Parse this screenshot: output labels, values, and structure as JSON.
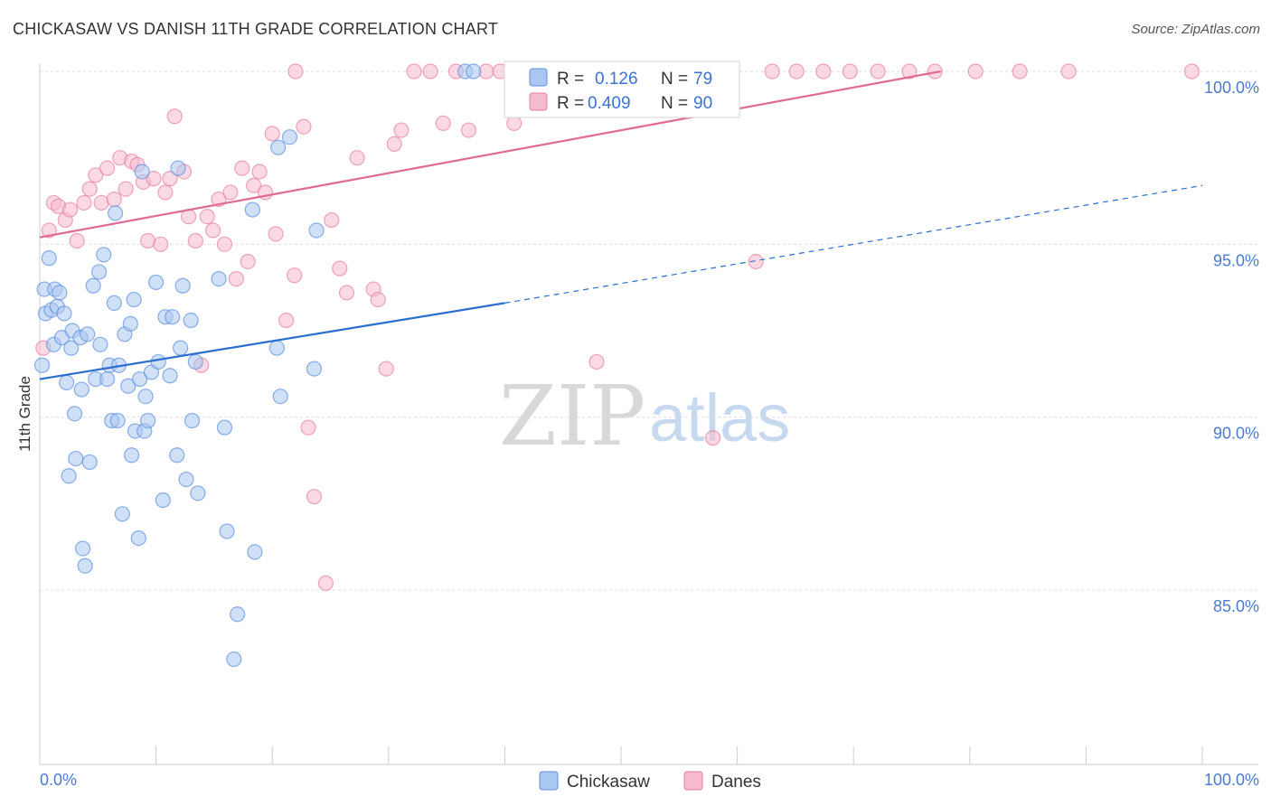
{
  "header": {
    "title": "CHICKASAW VS DANISH 11TH GRADE CORRELATION CHART",
    "source": "Source: ZipAtlas.com"
  },
  "colors": {
    "chickasaw": "#5b8fe0",
    "chickasaw_fill": "#a9c7f1",
    "danes": "#e77fa2",
    "danes_fill": "#f6bacd",
    "trend_blue": "#2a6fd0",
    "trend_pink": "#e06a94",
    "axis_label": "#4a7bd0",
    "grid": "#dddddd"
  },
  "legend_top": {
    "rows": [
      {
        "r_label": "R = ",
        "r_value": "0.126",
        "n_label": "N = ",
        "n_value": "79",
        "series": "chickasaw"
      },
      {
        "r_label": "R = ",
        "r_value": "0.409",
        "n_label": "N = ",
        "n_value": "90",
        "series": "danes"
      }
    ]
  },
  "legend_bottom": {
    "items": [
      {
        "label": "Chickasaw",
        "series": "chickasaw"
      },
      {
        "label": "Danes",
        "series": "danes"
      }
    ]
  },
  "watermark": {
    "zip": "ZIP",
    "atlas": "atlas"
  },
  "chart_data": {
    "type": "scatter",
    "title": "CHICKASAW VS DANISH 11TH GRADE CORRELATION CHART",
    "ylabel": "11th Grade",
    "xlabel": "",
    "x_tick_labels": [
      "0.0%",
      "100.0%"
    ],
    "y_tick_labels": [
      "100.0%",
      "95.0%",
      "90.0%",
      "85.0%"
    ],
    "y_ticks": [
      100,
      95,
      90,
      85
    ],
    "xlim": [
      0,
      100
    ],
    "ylim": [
      80.2,
      100.5
    ],
    "grid": true,
    "legend_placement": "top-center",
    "series": [
      {
        "name": "Chickasaw",
        "r": 0.126,
        "n": 79,
        "trend": {
          "x0": 0,
          "y0": 91.1,
          "x1": 40,
          "y1": 93.3,
          "dashed_to_x": 100,
          "dashed_to_y": 96.7
        },
        "points": [
          [
            0.2,
            91.5
          ],
          [
            0.4,
            93.7
          ],
          [
            0.5,
            93.0
          ],
          [
            0.8,
            94.6
          ],
          [
            1.0,
            93.1
          ],
          [
            1.2,
            92.1
          ],
          [
            1.3,
            93.7
          ],
          [
            1.5,
            93.2
          ],
          [
            1.7,
            93.6
          ],
          [
            1.9,
            92.3
          ],
          [
            2.1,
            93.0
          ],
          [
            2.3,
            91.0
          ],
          [
            2.5,
            88.3
          ],
          [
            2.7,
            92.0
          ],
          [
            2.8,
            92.5
          ],
          [
            3.0,
            90.1
          ],
          [
            3.1,
            88.8
          ],
          [
            3.5,
            92.3
          ],
          [
            3.6,
            90.8
          ],
          [
            3.7,
            86.2
          ],
          [
            3.9,
            85.7
          ],
          [
            4.1,
            92.4
          ],
          [
            4.3,
            88.7
          ],
          [
            4.6,
            93.8
          ],
          [
            4.8,
            91.1
          ],
          [
            5.1,
            94.2
          ],
          [
            5.2,
            92.1
          ],
          [
            5.5,
            94.7
          ],
          [
            5.8,
            91.1
          ],
          [
            6.0,
            91.5
          ],
          [
            6.2,
            89.9
          ],
          [
            6.4,
            93.3
          ],
          [
            6.5,
            95.9
          ],
          [
            6.7,
            89.9
          ],
          [
            6.8,
            91.5
          ],
          [
            7.1,
            87.2
          ],
          [
            7.3,
            92.4
          ],
          [
            7.6,
            90.9
          ],
          [
            7.8,
            92.7
          ],
          [
            7.9,
            88.9
          ],
          [
            8.1,
            93.4
          ],
          [
            8.2,
            89.6
          ],
          [
            8.5,
            86.5
          ],
          [
            8.6,
            91.1
          ],
          [
            8.8,
            97.1
          ],
          [
            9.0,
            89.6
          ],
          [
            9.1,
            90.6
          ],
          [
            9.3,
            89.9
          ],
          [
            9.6,
            91.3
          ],
          [
            10.0,
            93.9
          ],
          [
            10.2,
            91.6
          ],
          [
            10.6,
            87.6
          ],
          [
            10.8,
            92.9
          ],
          [
            11.2,
            91.2
          ],
          [
            11.4,
            92.9
          ],
          [
            11.8,
            88.9
          ],
          [
            11.9,
            97.2
          ],
          [
            12.1,
            92.0
          ],
          [
            12.3,
            93.8
          ],
          [
            12.6,
            88.2
          ],
          [
            13.0,
            92.8
          ],
          [
            13.1,
            89.9
          ],
          [
            13.4,
            91.6
          ],
          [
            13.6,
            87.8
          ],
          [
            15.4,
            94.0
          ],
          [
            15.9,
            89.7
          ],
          [
            16.1,
            86.7
          ],
          [
            16.7,
            83.0
          ],
          [
            17.0,
            84.3
          ],
          [
            18.3,
            96.0
          ],
          [
            18.5,
            86.1
          ],
          [
            20.4,
            92.0
          ],
          [
            20.7,
            90.6
          ],
          [
            20.5,
            97.8
          ],
          [
            21.5,
            98.1
          ],
          [
            23.6,
            91.4
          ],
          [
            23.8,
            95.4
          ],
          [
            36.6,
            100.0
          ],
          [
            37.3,
            100.0
          ]
        ]
      },
      {
        "name": "Danes",
        "r": 0.409,
        "n": 90,
        "trend": {
          "x0": 0,
          "y0": 95.2,
          "x1": 77.5,
          "y1": 100.0
        },
        "points": [
          [
            0.3,
            92.0
          ],
          [
            0.8,
            95.4
          ],
          [
            1.2,
            96.2
          ],
          [
            1.6,
            96.1
          ],
          [
            2.2,
            95.7
          ],
          [
            2.6,
            96.0
          ],
          [
            3.2,
            95.1
          ],
          [
            3.8,
            96.2
          ],
          [
            4.3,
            96.6
          ],
          [
            4.8,
            97.0
          ],
          [
            5.3,
            96.2
          ],
          [
            5.8,
            97.2
          ],
          [
            6.4,
            96.3
          ],
          [
            6.9,
            97.5
          ],
          [
            7.4,
            96.6
          ],
          [
            7.9,
            97.4
          ],
          [
            8.4,
            97.3
          ],
          [
            8.9,
            96.8
          ],
          [
            9.3,
            95.1
          ],
          [
            9.8,
            96.9
          ],
          [
            10.4,
            95.0
          ],
          [
            10.8,
            96.5
          ],
          [
            11.2,
            96.9
          ],
          [
            11.6,
            98.7
          ],
          [
            12.4,
            97.1
          ],
          [
            12.8,
            95.8
          ],
          [
            13.4,
            95.1
          ],
          [
            13.9,
            91.5
          ],
          [
            14.4,
            95.8
          ],
          [
            14.9,
            95.4
          ],
          [
            15.4,
            96.3
          ],
          [
            15.9,
            95.0
          ],
          [
            16.4,
            96.5
          ],
          [
            16.9,
            94.0
          ],
          [
            17.4,
            97.2
          ],
          [
            17.9,
            94.5
          ],
          [
            18.4,
            96.7
          ],
          [
            18.9,
            97.1
          ],
          [
            19.4,
            96.5
          ],
          [
            20.0,
            98.2
          ],
          [
            20.3,
            95.3
          ],
          [
            21.2,
            92.8
          ],
          [
            21.9,
            94.1
          ],
          [
            22.7,
            98.4
          ],
          [
            23.1,
            89.7
          ],
          [
            23.6,
            87.7
          ],
          [
            24.6,
            85.2
          ],
          [
            25.1,
            95.7
          ],
          [
            25.8,
            94.3
          ],
          [
            26.4,
            93.6
          ],
          [
            27.3,
            97.5
          ],
          [
            28.7,
            93.7
          ],
          [
            29.1,
            93.4
          ],
          [
            29.8,
            91.4
          ],
          [
            30.5,
            97.9
          ],
          [
            31.1,
            98.3
          ],
          [
            32.2,
            100.0
          ],
          [
            33.6,
            100.0
          ],
          [
            34.7,
            98.5
          ],
          [
            35.8,
            100.0
          ],
          [
            36.9,
            98.3
          ],
          [
            38.4,
            100.0
          ],
          [
            39.6,
            100.0
          ],
          [
            40.8,
            98.5
          ],
          [
            42.3,
            100.0
          ],
          [
            43.9,
            100.0
          ],
          [
            45.1,
            100.0
          ],
          [
            46.8,
            100.0
          ],
          [
            47.9,
            91.6
          ],
          [
            49.5,
            100.0
          ],
          [
            50.7,
            100.0
          ],
          [
            52.1,
            100.0
          ],
          [
            53.7,
            100.0
          ],
          [
            55.0,
            100.0
          ],
          [
            56.4,
            100.0
          ],
          [
            57.9,
            89.4
          ],
          [
            59.5,
            100.0
          ],
          [
            61.6,
            94.5
          ],
          [
            63.0,
            100.0
          ],
          [
            65.1,
            100.0
          ],
          [
            67.4,
            100.0
          ],
          [
            69.7,
            100.0
          ],
          [
            72.1,
            100.0
          ],
          [
            74.8,
            100.0
          ],
          [
            77.0,
            100.0
          ],
          [
            80.5,
            100.0
          ],
          [
            84.3,
            100.0
          ],
          [
            88.5,
            100.0
          ],
          [
            99.1,
            100.0
          ],
          [
            22.0,
            100.0
          ]
        ]
      }
    ]
  }
}
